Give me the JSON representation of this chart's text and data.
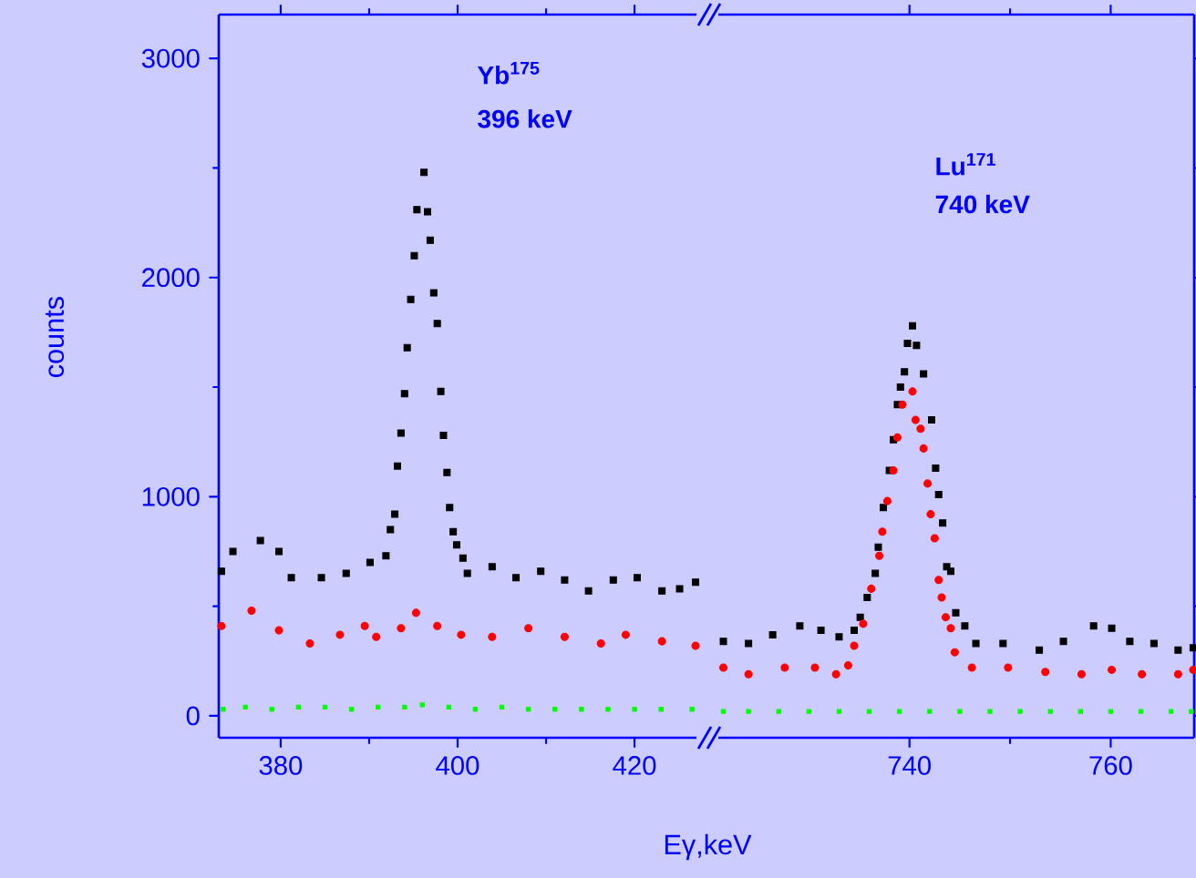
{
  "chart_data": [
    {
      "type": "scatter",
      "xlabel": "Eγ,keV",
      "ylabel": "counts",
      "xlim": [
        373,
        427
      ],
      "ylim": [
        -100,
        3200
      ],
      "xticks": [
        380,
        400,
        420
      ],
      "yticks": [
        0,
        1000,
        2000,
        3000
      ],
      "annotations": [
        "Yb$^{175}$",
        "396 keV"
      ],
      "series": [
        {
          "color": "#000000",
          "marker": "square",
          "x": [
            373.3,
            374.6,
            377.7,
            379.8,
            381.2,
            384.6,
            387.4,
            390.1,
            391.9,
            392.4,
            392.9,
            393.2,
            393.6,
            394.0,
            394.3,
            394.7,
            395.1,
            395.4,
            396.2,
            396.6,
            396.9,
            397.3,
            397.7,
            398.1,
            398.4,
            398.8,
            399.1,
            399.5,
            399.9,
            400.6,
            401.1,
            403.9,
            406.6,
            409.4,
            412.1,
            414.8,
            417.6,
            420.3,
            423.1,
            425.1,
            426.9
          ],
          "values": [
            660,
            750,
            800,
            750,
            630,
            630,
            650,
            700,
            730,
            850,
            920,
            1140,
            1290,
            1470,
            1680,
            1900,
            2100,
            2310,
            2480,
            2300,
            2170,
            1930,
            1790,
            1480,
            1280,
            1110,
            950,
            840,
            780,
            720,
            650,
            680,
            630,
            660,
            620,
            570,
            620,
            630,
            570,
            580,
            610
          ]
        },
        {
          "color": "#ff0000",
          "marker": "circle",
          "x": [
            373.3,
            376.7,
            379.8,
            383.3,
            386.7,
            389.5,
            390.8,
            393.6,
            395.3,
            397.7,
            400.4,
            403.9,
            408.0,
            412.1,
            416.2,
            419.0,
            423.1,
            426.9
          ],
          "values": [
            410,
            480,
            390,
            330,
            370,
            410,
            360,
            400,
            470,
            410,
            370,
            360,
            400,
            360,
            330,
            370,
            340,
            320
          ]
        },
        {
          "color": "#00ff00",
          "marker": "square",
          "x": [
            373.5,
            376,
            379,
            382,
            385,
            388,
            391,
            394,
            396,
            399,
            402,
            405,
            408,
            411,
            414,
            417,
            420,
            423,
            426.5
          ],
          "values": [
            30,
            40,
            30,
            40,
            40,
            30,
            40,
            40,
            50,
            40,
            30,
            40,
            30,
            30,
            30,
            30,
            30,
            30,
            30
          ]
        }
      ]
    },
    {
      "type": "scatter",
      "xlim": [
        721,
        768.3
      ],
      "ylim": [
        -100,
        3200
      ],
      "xticks": [
        740,
        760
      ],
      "yticks": [
        0,
        1000,
        2000,
        3000
      ],
      "tick_labels": "x",
      "annotations": [
        "Lu$^{171}$",
        "740 keV"
      ],
      "series": [
        {
          "color": "#000000",
          "marker": "square",
          "x": [
            721.5,
            724.0,
            726.4,
            729.1,
            731.2,
            733.0,
            734.5,
            735.1,
            735.8,
            736.6,
            736.9,
            737.4,
            738.0,
            738.4,
            738.8,
            739.1,
            739.5,
            739.8,
            740.3,
            740.7,
            741.4,
            742.2,
            742.6,
            742.9,
            743.3,
            743.7,
            744.1,
            744.6,
            745.5,
            746.6,
            749.3,
            752.9,
            755.3,
            758.3,
            760.1,
            761.9,
            764.3,
            766.7,
            768.2
          ],
          "values": [
            340,
            330,
            370,
            410,
            390,
            360,
            390,
            450,
            540,
            650,
            770,
            950,
            1120,
            1260,
            1420,
            1500,
            1570,
            1700,
            1780,
            1690,
            1560,
            1350,
            1130,
            1010,
            880,
            680,
            660,
            470,
            410,
            330,
            330,
            300,
            340,
            410,
            400,
            340,
            330,
            300,
            310
          ]
        },
        {
          "color": "#ff0000",
          "marker": "circle",
          "x": [
            721.5,
            724.0,
            727.6,
            730.6,
            732.7,
            733.9,
            734.5,
            735.4,
            736.2,
            737.0,
            737.3,
            737.8,
            738.4,
            738.8,
            739.3,
            740.3,
            740.6,
            741.1,
            741.4,
            741.8,
            742.1,
            742.5,
            742.9,
            743.2,
            743.6,
            744.1,
            744.5,
            746.2,
            749.8,
            753.5,
            757.1,
            760.1,
            763.1,
            766.7,
            768.2
          ],
          "values": [
            220,
            190,
            220,
            220,
            190,
            230,
            320,
            420,
            580,
            730,
            840,
            980,
            1120,
            1270,
            1420,
            1480,
            1350,
            1310,
            1220,
            1060,
            920,
            810,
            620,
            540,
            450,
            400,
            290,
            220,
            220,
            200,
            190,
            210,
            190,
            190,
            210
          ]
        },
        {
          "color": "#00ff00",
          "marker": "square",
          "x": [
            721.5,
            724,
            727,
            730,
            733,
            736,
            739,
            742,
            745,
            748,
            751,
            754,
            757,
            760,
            763,
            766,
            768
          ],
          "values": [
            20,
            20,
            20,
            20,
            20,
            20,
            20,
            20,
            20,
            20,
            20,
            20,
            20,
            20,
            20,
            20,
            20
          ]
        }
      ]
    }
  ]
}
